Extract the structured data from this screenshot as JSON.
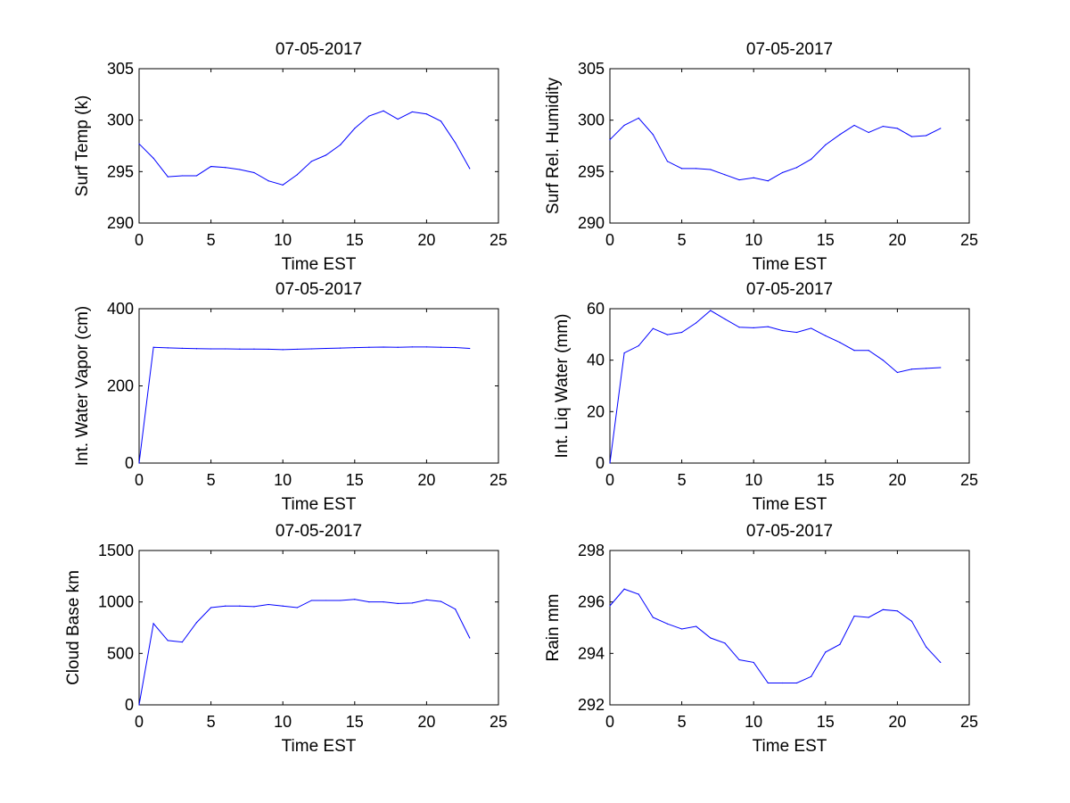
{
  "figure": {
    "background": "#ffffff",
    "line_color": "#0000ff"
  },
  "chart_data": [
    {
      "type": "line",
      "title": "07-05-2017",
      "xlabel": "Time EST",
      "ylabel": "Surf Temp (k)",
      "xlim": [
        0,
        25
      ],
      "ylim": [
        290,
        305
      ],
      "xticks": [
        0,
        5,
        10,
        15,
        20,
        25
      ],
      "yticks": [
        290,
        295,
        300,
        305
      ],
      "grid": false,
      "series": [
        {
          "x": [
            0,
            1,
            2,
            3,
            4,
            5,
            6,
            7,
            8,
            9,
            10,
            11,
            12,
            13,
            14,
            15,
            16,
            17,
            18,
            19,
            20,
            21,
            22,
            23
          ],
          "y": [
            297.7,
            296.3,
            294.5,
            294.6,
            294.6,
            295.5,
            295.4,
            295.2,
            294.9,
            294.1,
            293.7,
            294.7,
            296.0,
            296.6,
            297.6,
            299.2,
            300.4,
            300.9,
            300.1,
            300.8,
            300.6,
            299.9,
            297.8,
            295.3
          ]
        }
      ]
    },
    {
      "type": "line",
      "title": "07-05-2017",
      "xlabel": "Time EST",
      "ylabel": "Surf Rel. Humidity",
      "xlim": [
        0,
        25
      ],
      "ylim": [
        290,
        305
      ],
      "xticks": [
        0,
        5,
        10,
        15,
        20,
        25
      ],
      "yticks": [
        290,
        295,
        300,
        305
      ],
      "grid": false,
      "series": [
        {
          "x": [
            0,
            1,
            2,
            3,
            4,
            5,
            6,
            7,
            8,
            9,
            10,
            11,
            12,
            13,
            14,
            15,
            16,
            17,
            18,
            19,
            20,
            21,
            22,
            23
          ],
          "y": [
            298.1,
            299.5,
            300.2,
            298.6,
            296.0,
            295.3,
            295.3,
            295.2,
            294.7,
            294.2,
            294.4,
            294.1,
            294.9,
            295.4,
            296.2,
            297.6,
            298.6,
            299.5,
            298.8,
            299.4,
            299.2,
            298.4,
            298.5,
            299.2
          ]
        }
      ]
    },
    {
      "type": "line",
      "title": "07-05-2017",
      "xlabel": "Time EST",
      "ylabel": "Int. Water Vapor (cm)",
      "xlim": [
        0,
        25
      ],
      "ylim": [
        0,
        400
      ],
      "xticks": [
        0,
        5,
        10,
        15,
        20,
        25
      ],
      "yticks": [
        0,
        200,
        400
      ],
      "grid": false,
      "series": [
        {
          "x": [
            0,
            1,
            2,
            3,
            4,
            5,
            6,
            7,
            8,
            9,
            10,
            11,
            12,
            13,
            14,
            15,
            16,
            17,
            18,
            19,
            20,
            21,
            22,
            23
          ],
          "y": [
            0,
            300,
            298.5,
            297.5,
            296.5,
            296,
            296,
            295.5,
            295.5,
            295,
            294,
            295,
            296,
            297,
            298,
            299,
            300,
            300.5,
            300,
            301,
            301,
            300,
            299.5,
            297
          ]
        }
      ]
    },
    {
      "type": "line",
      "title": "07-05-2017",
      "xlabel": "Time EST",
      "ylabel": "Int. Liq Water (mm)",
      "xlim": [
        0,
        25
      ],
      "ylim": [
        0,
        60
      ],
      "xticks": [
        0,
        5,
        10,
        15,
        20,
        25
      ],
      "yticks": [
        0,
        20,
        40,
        60
      ],
      "grid": false,
      "series": [
        {
          "x": [
            0,
            1,
            2,
            3,
            4,
            5,
            6,
            7,
            8,
            9,
            10,
            11,
            12,
            13,
            14,
            15,
            16,
            17,
            18,
            19,
            20,
            21,
            22,
            23
          ],
          "y": [
            0,
            42.8,
            45.6,
            52.3,
            49.9,
            50.8,
            54.5,
            59.3,
            56.0,
            52.8,
            52.6,
            53.0,
            51.5,
            50.8,
            52.4,
            49.5,
            46.9,
            43.8,
            43.8,
            40.0,
            35.2,
            36.5,
            36.8,
            37.1
          ]
        }
      ]
    },
    {
      "type": "line",
      "title": "07-05-2017",
      "xlabel": "Time EST",
      "ylabel": "Cloud Base km",
      "xlim": [
        0,
        25
      ],
      "ylim": [
        0,
        1500
      ],
      "xticks": [
        0,
        5,
        10,
        15,
        20,
        25
      ],
      "yticks": [
        0,
        500,
        1000,
        1500
      ],
      "grid": false,
      "series": [
        {
          "x": [
            0,
            1,
            2,
            3,
            4,
            5,
            6,
            7,
            8,
            9,
            10,
            11,
            12,
            13,
            14,
            15,
            16,
            17,
            18,
            19,
            20,
            21,
            22,
            23
          ],
          "y": [
            0,
            790,
            625,
            610,
            800,
            945,
            960,
            960,
            955,
            975,
            960,
            945,
            1015,
            1015,
            1015,
            1025,
            1000,
            1000,
            985,
            990,
            1020,
            1005,
            930,
            650
          ]
        }
      ]
    },
    {
      "type": "line",
      "title": "07-05-2017",
      "xlabel": "Time EST",
      "ylabel": "Rain mm",
      "xlim": [
        0,
        25
      ],
      "ylim": [
        292,
        298
      ],
      "xticks": [
        0,
        5,
        10,
        15,
        20,
        25
      ],
      "yticks": [
        292,
        294,
        296,
        298
      ],
      "grid": false,
      "series": [
        {
          "x": [
            0,
            1,
            2,
            3,
            4,
            5,
            6,
            7,
            8,
            9,
            10,
            11,
            12,
            13,
            14,
            15,
            16,
            17,
            18,
            19,
            20,
            21,
            22,
            23
          ],
          "y": [
            295.85,
            296.5,
            296.3,
            295.4,
            295.15,
            294.95,
            295.05,
            294.6,
            294.4,
            293.75,
            293.65,
            292.85,
            292.85,
            292.85,
            293.1,
            294.05,
            294.35,
            295.45,
            295.4,
            295.7,
            295.65,
            295.25,
            294.25,
            293.65
          ]
        }
      ]
    }
  ]
}
